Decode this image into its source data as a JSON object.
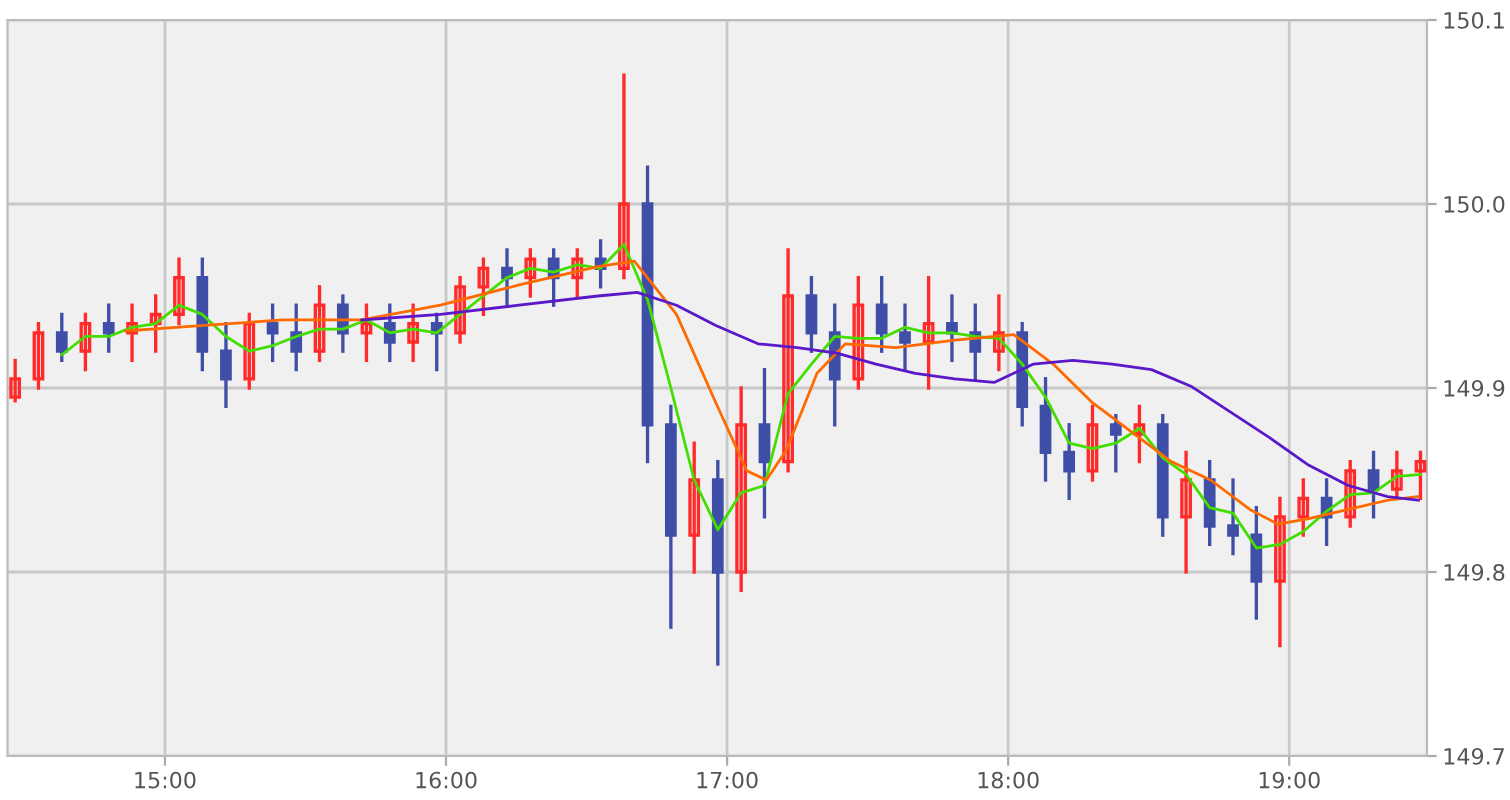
{
  "chart_data": {
    "type": "candlestick",
    "x": [
      14.467,
      14.55,
      14.633,
      14.717,
      14.8,
      14.883,
      14.967,
      15.05,
      15.133,
      15.217,
      15.3,
      15.383,
      15.467,
      15.55,
      15.633,
      15.717,
      15.8,
      15.883,
      15.967,
      16.05,
      16.133,
      16.217,
      16.3,
      16.383,
      16.467,
      16.55,
      16.633,
      16.717,
      16.8,
      16.883,
      16.967,
      17.05,
      17.133,
      17.217,
      17.3,
      17.383,
      17.467,
      17.55,
      17.633,
      17.717,
      17.8,
      17.883,
      17.967,
      18.05,
      18.133,
      18.217,
      18.3,
      18.383,
      18.467,
      18.55,
      18.633,
      18.717,
      18.8,
      18.883,
      18.967,
      19.05,
      19.133,
      19.217,
      19.3,
      19.383,
      19.467
    ],
    "ohlc": [
      [
        149.895,
        149.915,
        149.893,
        149.905
      ],
      [
        149.905,
        149.935,
        149.9,
        149.93
      ],
      [
        149.93,
        149.94,
        149.915,
        149.92
      ],
      [
        149.92,
        149.94,
        149.91,
        149.935
      ],
      [
        149.935,
        149.945,
        149.92,
        149.93
      ],
      [
        149.93,
        149.945,
        149.915,
        149.935
      ],
      [
        149.935,
        149.95,
        149.92,
        149.94
      ],
      [
        149.94,
        149.97,
        149.935,
        149.96
      ],
      [
        149.96,
        149.97,
        149.91,
        149.92
      ],
      [
        149.92,
        149.935,
        149.89,
        149.905
      ],
      [
        149.905,
        149.94,
        149.9,
        149.935
      ],
      [
        149.935,
        149.945,
        149.915,
        149.93
      ],
      [
        149.93,
        149.945,
        149.91,
        149.92
      ],
      [
        149.92,
        149.955,
        149.915,
        149.945
      ],
      [
        149.945,
        149.95,
        149.92,
        149.93
      ],
      [
        149.93,
        149.945,
        149.915,
        149.935
      ],
      [
        149.935,
        149.945,
        149.915,
        149.925
      ],
      [
        149.925,
        149.945,
        149.915,
        149.935
      ],
      [
        149.935,
        149.94,
        149.91,
        149.93
      ],
      [
        149.93,
        149.96,
        149.925,
        149.955
      ],
      [
        149.955,
        149.97,
        149.94,
        149.965
      ],
      [
        149.965,
        149.975,
        149.945,
        149.96
      ],
      [
        149.96,
        149.975,
        149.95,
        149.97
      ],
      [
        149.97,
        149.975,
        149.945,
        149.96
      ],
      [
        149.96,
        149.975,
        149.95,
        149.97
      ],
      [
        149.97,
        149.98,
        149.955,
        149.965
      ],
      [
        149.965,
        150.07,
        149.96,
        150.0
      ],
      [
        150.0,
        150.02,
        149.86,
        149.88
      ],
      [
        149.88,
        149.89,
        149.77,
        149.82
      ],
      [
        149.82,
        149.87,
        149.8,
        149.85
      ],
      [
        149.85,
        149.86,
        149.75,
        149.8
      ],
      [
        149.8,
        149.9,
        149.79,
        149.88
      ],
      [
        149.88,
        149.91,
        149.83,
        149.86
      ],
      [
        149.86,
        149.975,
        149.855,
        149.95
      ],
      [
        149.95,
        149.96,
        149.92,
        149.93
      ],
      [
        149.93,
        149.945,
        149.88,
        149.905
      ],
      [
        149.905,
        149.96,
        149.9,
        149.945
      ],
      [
        149.945,
        149.96,
        149.92,
        149.93
      ],
      [
        149.93,
        149.945,
        149.91,
        149.925
      ],
      [
        149.925,
        149.96,
        149.9,
        149.935
      ],
      [
        149.935,
        149.95,
        149.915,
        149.93
      ],
      [
        149.93,
        149.945,
        149.905,
        149.92
      ],
      [
        149.92,
        149.95,
        149.91,
        149.93
      ],
      [
        149.93,
        149.935,
        149.88,
        149.89
      ],
      [
        149.89,
        149.905,
        149.85,
        149.865
      ],
      [
        149.865,
        149.88,
        149.84,
        149.855
      ],
      [
        149.855,
        149.89,
        149.85,
        149.88
      ],
      [
        149.88,
        149.885,
        149.855,
        149.875
      ],
      [
        149.875,
        149.89,
        149.86,
        149.88
      ],
      [
        149.88,
        149.885,
        149.82,
        149.83
      ],
      [
        149.83,
        149.865,
        149.8,
        149.85
      ],
      [
        149.85,
        149.86,
        149.815,
        149.825
      ],
      [
        149.825,
        149.85,
        149.81,
        149.82
      ],
      [
        149.82,
        149.835,
        149.775,
        149.795
      ],
      [
        149.795,
        149.84,
        149.76,
        149.83
      ],
      [
        149.83,
        149.85,
        149.82,
        149.84
      ],
      [
        149.84,
        149.85,
        149.815,
        149.83
      ],
      [
        149.83,
        149.86,
        149.825,
        149.855
      ],
      [
        149.855,
        149.865,
        149.83,
        149.845
      ],
      [
        149.845,
        149.865,
        149.84,
        149.855
      ],
      [
        149.855,
        149.865,
        149.84,
        149.86
      ]
    ],
    "colors": [
      "#ff2a2a",
      "#ff2a2a",
      "#3f4fa8",
      "#ff2a2a",
      "#3f4fa8",
      "#ff2a2a",
      "#ff2a2a",
      "#ff2a2a",
      "#3f4fa8",
      "#3f4fa8",
      "#ff2a2a",
      "#3f4fa8",
      "#3f4fa8",
      "#ff2a2a",
      "#3f4fa8",
      "#ff2a2a",
      "#3f4fa8",
      "#ff2a2a",
      "#3f4fa8",
      "#ff2a2a",
      "#ff2a2a",
      "#3f4fa8",
      "#ff2a2a",
      "#3f4fa8",
      "#ff2a2a",
      "#3f4fa8",
      "#ff2a2a",
      "#3f4fa8",
      "#3f4fa8",
      "#ff2a2a",
      "#3f4fa8",
      "#ff2a2a",
      "#3f4fa8",
      "#ff2a2a",
      "#3f4fa8",
      "#3f4fa8",
      "#ff2a2a",
      "#3f4fa8",
      "#3f4fa8",
      "#ff2a2a",
      "#3f4fa8",
      "#3f4fa8",
      "#ff2a2a",
      "#3f4fa8",
      "#3f4fa8",
      "#3f4fa8",
      "#ff2a2a",
      "#3f4fa8",
      "#ff2a2a",
      "#3f4fa8",
      "#ff2a2a",
      "#3f4fa8",
      "#3f4fa8",
      "#3f4fa8",
      "#ff2a2a",
      "#ff2a2a",
      "#3f4fa8",
      "#ff2a2a",
      "#3f4fa8",
      "#ff2a2a",
      "#ff2a2a"
    ],
    "series": [
      {
        "type": "line",
        "color": "#44dd00",
        "x": [
          14.633,
          14.717,
          14.8,
          14.883,
          14.967,
          15.05,
          15.133,
          15.217,
          15.3,
          15.383,
          15.467,
          15.55,
          15.633,
          15.717,
          15.8,
          15.883,
          15.967,
          16.05,
          16.133,
          16.217,
          16.3,
          16.383,
          16.467,
          16.55,
          16.633,
          16.717,
          16.8,
          16.883,
          16.967,
          17.05,
          17.133,
          17.217,
          17.3,
          17.383,
          17.467,
          17.55,
          17.633,
          17.717,
          17.8,
          17.883,
          17.967,
          18.05,
          18.133,
          18.217,
          18.3,
          18.383,
          18.467,
          18.55,
          18.633,
          18.717,
          18.8,
          18.883,
          18.967,
          19.05,
          19.133,
          19.217,
          19.3,
          19.383,
          19.467
        ],
        "values": [
          149.918,
          149.928,
          149.928,
          149.933,
          149.935,
          149.945,
          149.94,
          149.928,
          149.92,
          149.923,
          149.928,
          149.932,
          149.932,
          149.937,
          149.93,
          149.932,
          149.93,
          149.94,
          149.95,
          149.96,
          149.965,
          149.963,
          149.967,
          149.965,
          149.978,
          149.948,
          149.9,
          149.85,
          149.823,
          149.843,
          149.847,
          149.897,
          149.913,
          149.928,
          149.927,
          149.927,
          149.933,
          149.93,
          149.93,
          149.928,
          149.927,
          149.913,
          149.895,
          149.87,
          149.867,
          149.87,
          149.878,
          149.862,
          149.853,
          149.835,
          149.832,
          149.813,
          149.815,
          149.822,
          149.833,
          149.842,
          149.843,
          149.852,
          149.853
        ]
      },
      {
        "type": "line",
        "color": "#ff6a00",
        "x": [
          14.86,
          15.14,
          15.42,
          15.7,
          15.98,
          16.26,
          16.54,
          16.67,
          16.82,
          16.96,
          17.07,
          17.14,
          17.21,
          17.32,
          17.42,
          17.6,
          17.81,
          18.02,
          18.16,
          18.3,
          18.44,
          18.58,
          18.72,
          18.86,
          18.96,
          19.07,
          19.21,
          19.35,
          19.46
        ],
        "values": [
          149.931,
          149.934,
          149.937,
          149.937,
          149.945,
          149.956,
          149.966,
          149.969,
          149.94,
          149.892,
          149.855,
          149.85,
          149.866,
          149.908,
          149.924,
          149.922,
          149.926,
          149.929,
          149.913,
          149.892,
          149.876,
          149.86,
          149.85,
          149.834,
          149.826,
          149.829,
          149.834,
          149.839,
          149.841
        ]
      },
      {
        "type": "line",
        "color": "#5a18c8",
        "x": [
          15.7,
          15.98,
          16.26,
          16.54,
          16.68,
          16.82,
          16.96,
          17.11,
          17.25,
          17.39,
          17.53,
          17.67,
          17.81,
          17.95,
          18.09,
          18.23,
          18.37,
          18.51,
          18.65,
          18.79,
          18.93,
          19.07,
          19.21,
          19.35,
          19.46
        ],
        "values": [
          149.937,
          149.94,
          149.945,
          149.95,
          149.952,
          149.945,
          149.934,
          149.924,
          149.922,
          149.919,
          149.913,
          149.908,
          149.905,
          149.903,
          149.913,
          149.915,
          149.913,
          149.91,
          149.901,
          149.887,
          149.873,
          149.858,
          149.847,
          149.841,
          149.839
        ]
      }
    ],
    "xlim": [
      14.44,
      19.49
    ],
    "ylim": [
      149.7,
      150.1
    ],
    "xticks": [
      {
        "value": 15,
        "label": "15:00"
      },
      {
        "value": 16,
        "label": "16:00"
      },
      {
        "value": 17,
        "label": "17:00"
      },
      {
        "value": 18,
        "label": "18:00"
      },
      {
        "value": 19,
        "label": "19:00"
      }
    ],
    "yticks": [
      {
        "value": 149.7,
        "label": "149.7"
      },
      {
        "value": 149.8,
        "label": "149.8"
      },
      {
        "value": 149.9,
        "label": "149.9"
      },
      {
        "value": 150.0,
        "label": "150.0"
      },
      {
        "value": 150.1,
        "label": "150.1"
      }
    ],
    "grid": true,
    "marker": "none",
    "line_style": "solid"
  }
}
